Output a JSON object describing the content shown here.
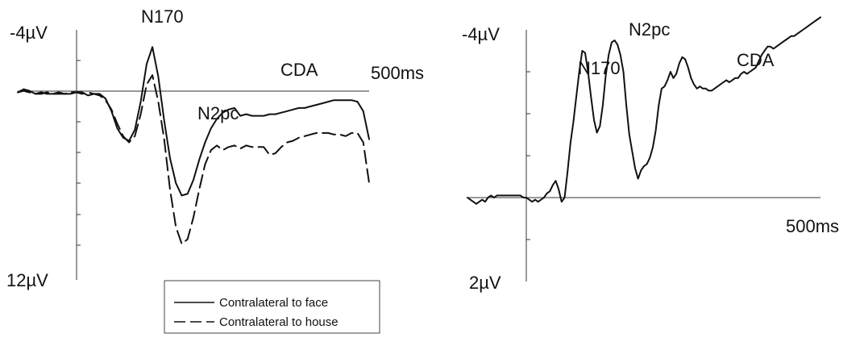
{
  "chart_data": [
    {
      "type": "line",
      "panel": "left",
      "xlabel": "",
      "ylabel": "",
      "x_end_label": "500ms",
      "x_range_ms": [
        -100,
        500
      ],
      "y_top_label": "-4µV",
      "y_bottom_label": "12µV",
      "y_range_uV": [
        -4,
        12
      ],
      "y_axis_inverted": true,
      "grid": false,
      "legend_position": "bottom-center",
      "annotations": [
        "N170",
        "N2pc",
        "CDA"
      ],
      "series": [
        {
          "name": "Contralateral to face",
          "style": "solid",
          "x": [
            -100,
            -90,
            -80,
            -70,
            -60,
            -50,
            -40,
            -30,
            -20,
            -10,
            0,
            10,
            20,
            30,
            40,
            50,
            60,
            70,
            80,
            90,
            100,
            110,
            120,
            130,
            140,
            150,
            160,
            170,
            180,
            190,
            200,
            210,
            220,
            230,
            240,
            250,
            260,
            270,
            280,
            290,
            300,
            310,
            320,
            330,
            340,
            350,
            360,
            370,
            380,
            390,
            400,
            410,
            420,
            430,
            440,
            450,
            460,
            470,
            480,
            490,
            500
          ],
          "y": [
            0.0,
            -0.2,
            -0.1,
            0.1,
            0.0,
            0.1,
            0.1,
            0.1,
            0.1,
            0.1,
            0.0,
            0.0,
            0.2,
            0.1,
            0.1,
            0.4,
            1.2,
            2.3,
            2.9,
            3.1,
            2.4,
            0.6,
            -1.8,
            -2.9,
            -1.0,
            1.8,
            4.2,
            5.8,
            6.6,
            6.5,
            5.6,
            4.3,
            3.2,
            2.3,
            1.7,
            1.3,
            1.1,
            1.0,
            1.5,
            1.4,
            1.5,
            1.5,
            1.5,
            1.4,
            1.4,
            1.3,
            1.2,
            1.1,
            1.0,
            1.0,
            0.9,
            0.8,
            0.7,
            0.6,
            0.5,
            0.5,
            0.5,
            0.5,
            0.6,
            1.2,
            3.0
          ]
        },
        {
          "name": "Contralateral to house",
          "style": "dashed",
          "x": [
            -100,
            -90,
            -80,
            -70,
            -60,
            -50,
            -40,
            -30,
            -20,
            -10,
            0,
            10,
            20,
            30,
            40,
            50,
            60,
            70,
            80,
            90,
            100,
            110,
            120,
            130,
            140,
            150,
            160,
            170,
            180,
            190,
            200,
            210,
            220,
            230,
            240,
            250,
            260,
            270,
            280,
            290,
            300,
            310,
            320,
            330,
            340,
            350,
            360,
            370,
            380,
            390,
            400,
            410,
            420,
            430,
            440,
            450,
            460,
            470,
            480,
            490,
            500
          ],
          "y": [
            0.0,
            -0.1,
            0.0,
            0.1,
            0.1,
            0.0,
            0.1,
            0.0,
            0.1,
            0.0,
            0.0,
            0.1,
            0.0,
            0.1,
            0.2,
            0.5,
            1.1,
            2.0,
            2.8,
            3.2,
            2.8,
            1.4,
            -0.5,
            -1.1,
            0.6,
            3.0,
            6.2,
            8.6,
            9.7,
            9.4,
            8.0,
            6.2,
            4.6,
            3.7,
            3.4,
            3.7,
            3.5,
            3.4,
            3.6,
            3.4,
            3.5,
            3.5,
            3.5,
            4.0,
            3.9,
            3.5,
            3.2,
            3.1,
            2.9,
            2.8,
            2.7,
            2.6,
            2.6,
            2.6,
            2.7,
            2.7,
            2.8,
            2.6,
            2.6,
            3.2,
            5.8
          ]
        }
      ],
      "legend": [
        "Contralateral to face",
        "Contralateral to house"
      ]
    },
    {
      "type": "line",
      "panel": "right",
      "xlabel": "",
      "ylabel": "",
      "x_end_label": "500ms",
      "x_range_ms": [
        -100,
        500
      ],
      "y_top_label": "-4µV",
      "y_bottom_label": "2µV",
      "y_range_uV": [
        -4,
        2
      ],
      "y_axis_inverted": true,
      "grid": false,
      "annotations": [
        "N170",
        "N2pc",
        "CDA"
      ],
      "series": [
        {
          "x": [
            -100,
            -95,
            -90,
            -85,
            -80,
            -75,
            -70,
            -65,
            -60,
            -55,
            -50,
            -45,
            -40,
            -35,
            -30,
            -25,
            -20,
            -15,
            -10,
            -5,
            0,
            5,
            10,
            15,
            20,
            25,
            30,
            35,
            40,
            45,
            50,
            55,
            60,
            65,
            70,
            75,
            80,
            85,
            90,
            95,
            100,
            105,
            110,
            115,
            120,
            125,
            130,
            135,
            140,
            145,
            150,
            155,
            160,
            165,
            170,
            175,
            180,
            185,
            190,
            195,
            200,
            205,
            210,
            215,
            220,
            225,
            230,
            235,
            240,
            245,
            250,
            255,
            260,
            265,
            270,
            275,
            280,
            285,
            290,
            295,
            300,
            305,
            310,
            315,
            320,
            325,
            330,
            335,
            340,
            345,
            350,
            355,
            360,
            365,
            370,
            375,
            380,
            385,
            390,
            395,
            400,
            405,
            410,
            415,
            420,
            425,
            430,
            435,
            440,
            445,
            450,
            455,
            460,
            465,
            470,
            475,
            480,
            485,
            490,
            495,
            500
          ],
          "y": [
            0.0,
            0.05,
            0.1,
            0.15,
            0.1,
            0.05,
            0.1,
            0.0,
            -0.05,
            0.0,
            -0.05,
            -0.05,
            -0.05,
            -0.05,
            -0.05,
            -0.05,
            -0.05,
            -0.05,
            -0.05,
            0.0,
            0.0,
            0.05,
            0.1,
            0.05,
            0.1,
            0.05,
            0.0,
            -0.1,
            -0.15,
            -0.3,
            -0.4,
            -0.2,
            0.1,
            0.0,
            -0.6,
            -1.3,
            -1.8,
            -2.4,
            -3.0,
            -3.5,
            -3.45,
            -3.0,
            -2.4,
            -1.85,
            -1.55,
            -1.7,
            -2.2,
            -2.9,
            -3.4,
            -3.7,
            -3.75,
            -3.65,
            -3.4,
            -3.0,
            -2.2,
            -1.5,
            -1.1,
            -0.7,
            -0.45,
            -0.65,
            -0.75,
            -0.8,
            -0.95,
            -1.2,
            -1.6,
            -2.2,
            -2.6,
            -2.65,
            -2.8,
            -3.0,
            -2.85,
            -2.95,
            -3.2,
            -3.35,
            -3.3,
            -3.1,
            -2.85,
            -2.7,
            -2.6,
            -2.65,
            -2.6,
            -2.6,
            -2.55,
            -2.55,
            -2.6,
            -2.65,
            -2.7,
            -2.75,
            -2.8,
            -2.75,
            -2.8,
            -2.85,
            -2.85,
            -2.95,
            -3.0,
            -2.95,
            -3.0,
            -3.05,
            -3.1,
            -3.25,
            -3.4,
            -3.5,
            -3.6,
            -3.6,
            -3.55,
            -3.6,
            -3.65,
            -3.7,
            -3.75,
            -3.8,
            -3.85,
            -3.85,
            -3.9,
            -3.95,
            -4.0,
            -4.05,
            -4.1,
            -4.15,
            -4.2,
            -4.25,
            -4.3
          ]
        }
      ]
    }
  ]
}
